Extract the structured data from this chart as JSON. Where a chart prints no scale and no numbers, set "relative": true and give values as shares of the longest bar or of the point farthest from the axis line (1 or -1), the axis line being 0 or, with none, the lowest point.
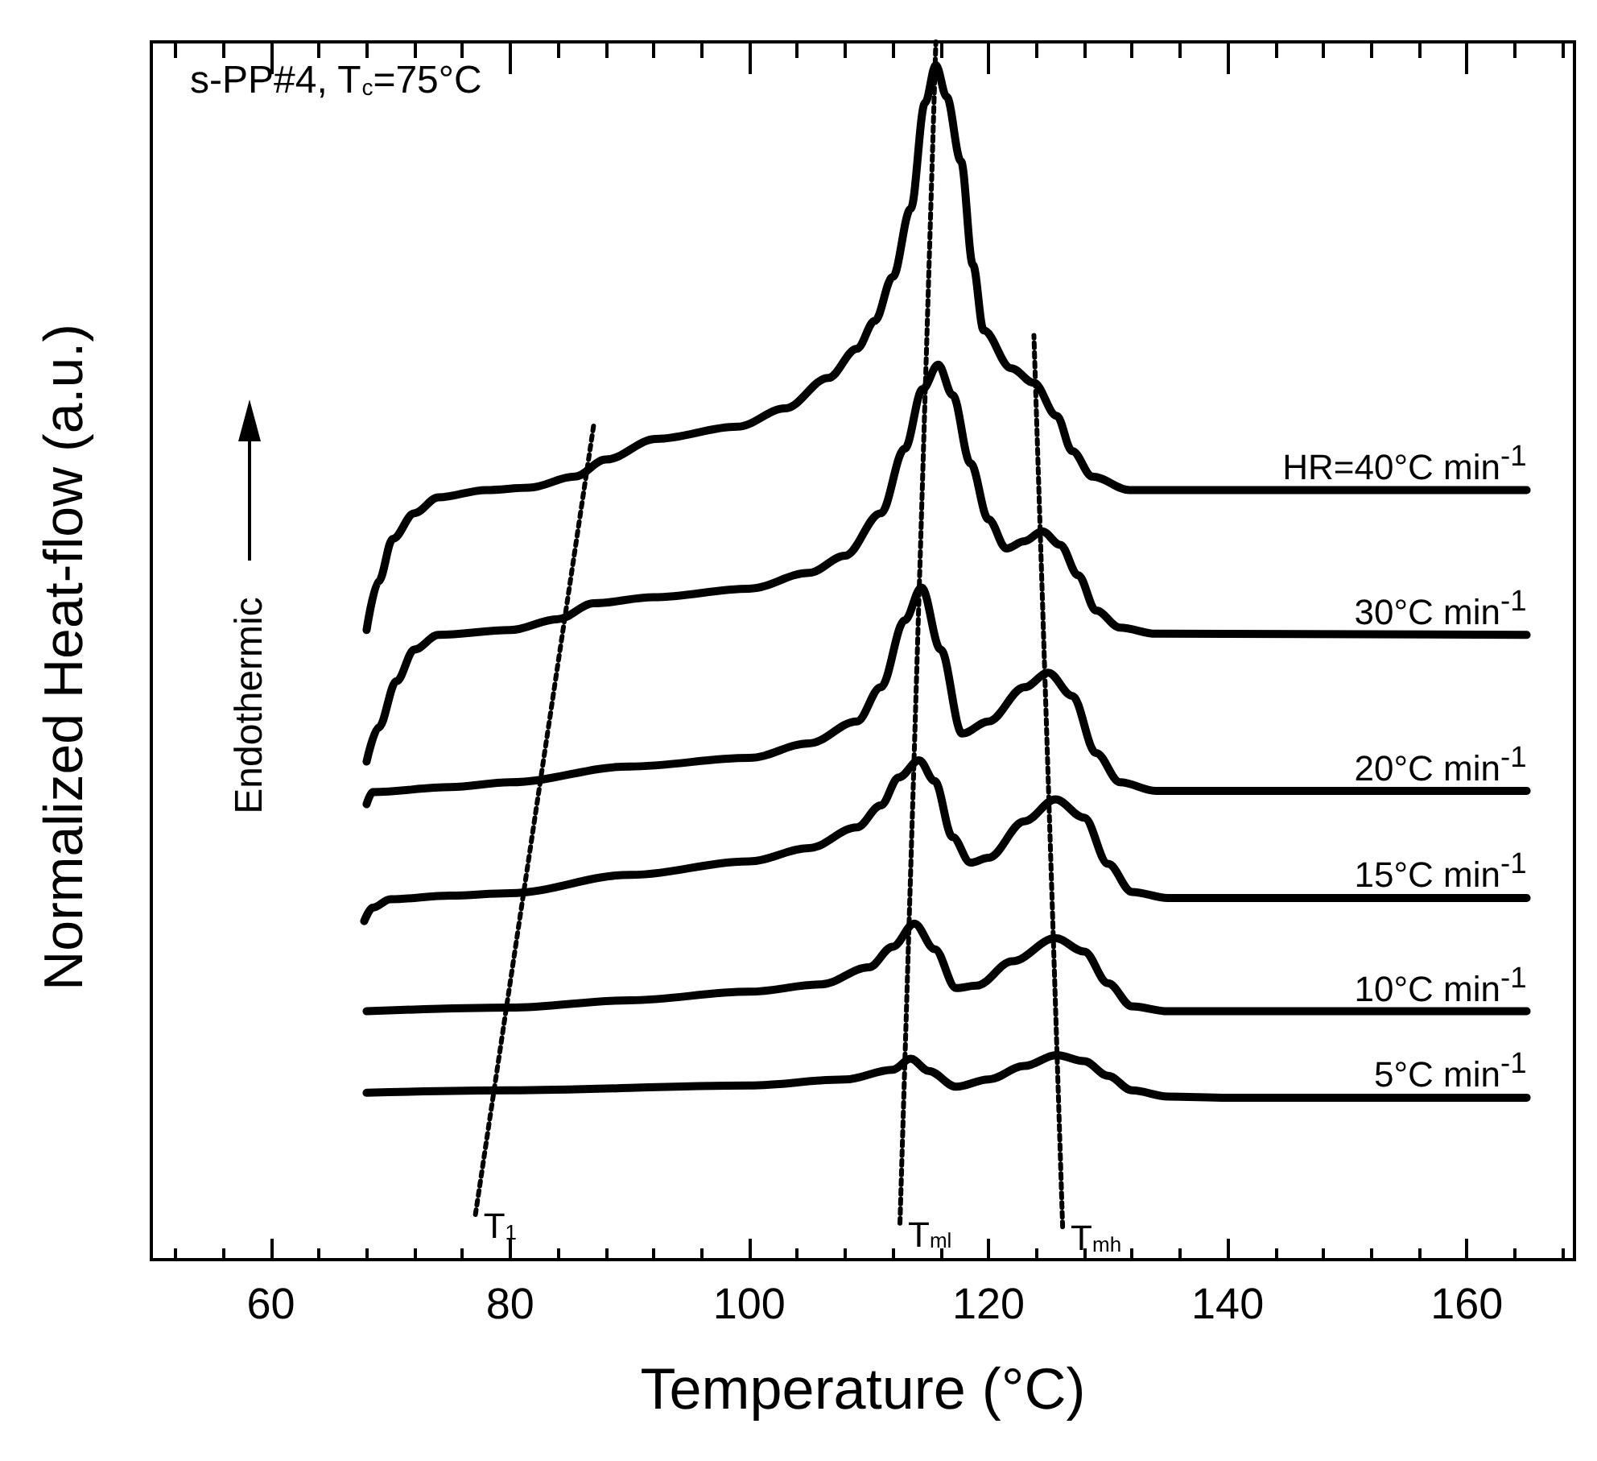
{
  "chart_data": {
    "type": "line",
    "relative": true,
    "xlabel": "Temperature (°C)",
    "ylabel": "Normalized Heat-flow (a.u.)",
    "xlim": [
      50,
      169
    ],
    "xticks": [
      60,
      80,
      100,
      120,
      140,
      160
    ],
    "tick_labels": "x",
    "marker": "none",
    "annotations": [
      "s-PP#4, T$_{c}$=75°C",
      "Endothermic",
      "T$_{1}$",
      "T$_{ml}$",
      "T$_{mh}$"
    ],
    "series": [
      {
        "name": "HR=40°C min$^{-1}$",
        "color": "#000000",
        "x": [
          68,
          69,
          70.2,
          72,
          74,
          78,
          81.6,
          85.4,
          88,
          92.2,
          99,
          103,
          106.6,
          109,
          110.5,
          112,
          113.5,
          114.7,
          115.6,
          116.5,
          117.7,
          118.7,
          119.6,
          121.9,
          123.8,
          125.7,
          127,
          128.7,
          131.8,
          165
        ],
        "values": [
          0.517,
          0.557,
          0.592,
          0.613,
          0.626,
          0.632,
          0.634,
          0.643,
          0.657,
          0.674,
          0.684,
          0.699,
          0.724,
          0.748,
          0.771,
          0.807,
          0.863,
          0.95,
          0.981,
          0.955,
          0.902,
          0.817,
          0.763,
          0.732,
          0.72,
          0.693,
          0.664,
          0.643,
          0.632,
          0.632
        ]
      },
      {
        "name": "30°C min$^{-1}$",
        "color": "#000000",
        "x": [
          68,
          69,
          70.5,
          72,
          74,
          80,
          84,
          87,
          92,
          100,
          105,
          108,
          111,
          113,
          114.5,
          115.8,
          117,
          118.5,
          120,
          121.5,
          123,
          124.5,
          126,
          127.5,
          129,
          131,
          134,
          165
        ],
        "values": [
          0.409,
          0.437,
          0.475,
          0.501,
          0.513,
          0.517,
          0.526,
          0.539,
          0.544,
          0.551,
          0.564,
          0.578,
          0.613,
          0.666,
          0.715,
          0.735,
          0.71,
          0.654,
          0.608,
          0.584,
          0.59,
          0.598,
          0.587,
          0.562,
          0.533,
          0.519,
          0.514,
          0.513
        ]
      },
      {
        "name": "20°C min$^{-1}$",
        "color": "#000000",
        "x": [
          68,
          68.5,
          75,
          80,
          90,
          100,
          105,
          109,
          111,
          113,
          114.4,
          116,
          117.8,
          120,
          123,
          125,
          127,
          129,
          131,
          134,
          165
        ],
        "values": [
          0.374,
          0.384,
          0.388,
          0.392,
          0.405,
          0.412,
          0.424,
          0.442,
          0.47,
          0.525,
          0.552,
          0.501,
          0.432,
          0.442,
          0.47,
          0.482,
          0.463,
          0.416,
          0.392,
          0.385,
          0.385
        ]
      },
      {
        "name": "15°C min$^{-1}$",
        "color": "#000000",
        "x": [
          67.8,
          68.5,
          70,
          75,
          80,
          90,
          100,
          105,
          109,
          111,
          112.5,
          114.2,
          115.5,
          117,
          118.5,
          120,
          123,
          125.6,
          128,
          130,
          132,
          135,
          165
        ],
        "values": [
          0.278,
          0.289,
          0.296,
          0.299,
          0.301,
          0.316,
          0.327,
          0.338,
          0.355,
          0.373,
          0.396,
          0.41,
          0.393,
          0.347,
          0.326,
          0.33,
          0.36,
          0.378,
          0.363,
          0.325,
          0.302,
          0.297,
          0.297
        ]
      },
      {
        "name": "10°C min$^{-1}$",
        "color": "#000000",
        "x": [
          68,
          80,
          90,
          100,
          106,
          110,
          112,
          113.8,
          115.5,
          117.3,
          119,
          122,
          125.6,
          128,
          130,
          132,
          135,
          165
        ],
        "values": [
          0.204,
          0.207,
          0.213,
          0.22,
          0.226,
          0.24,
          0.257,
          0.276,
          0.255,
          0.223,
          0.225,
          0.245,
          0.264,
          0.253,
          0.227,
          0.208,
          0.204,
          0.204
        ]
      },
      {
        "name": "5°C min$^{-1}$",
        "color": "#000000",
        "x": [
          68,
          80,
          100,
          108,
          112,
          113.5,
          115,
          117.3,
          120,
          123,
          125.7,
          128,
          130,
          132,
          135,
          140,
          165
        ],
        "values": [
          0.137,
          0.139,
          0.143,
          0.148,
          0.156,
          0.165,
          0.155,
          0.142,
          0.148,
          0.159,
          0.168,
          0.163,
          0.151,
          0.139,
          0.134,
          0.133,
          0.133
        ]
      },
      {
        "type": "line",
        "line_style": "dotted",
        "color": "#000000",
        "x": [
          77.1,
          87
        ],
        "values": [
          0.037,
          0.686
        ]
      },
      {
        "type": "line",
        "line_style": "dotted",
        "color": "#000000",
        "x": [
          112.6,
          115.6
        ],
        "values": [
          0.03,
          1
        ]
      },
      {
        "type": "line",
        "line_style": "dotted",
        "color": "#000000",
        "x": [
          126.2,
          123.8
        ],
        "values": [
          0.027,
          0.759
        ]
      }
    ]
  }
}
